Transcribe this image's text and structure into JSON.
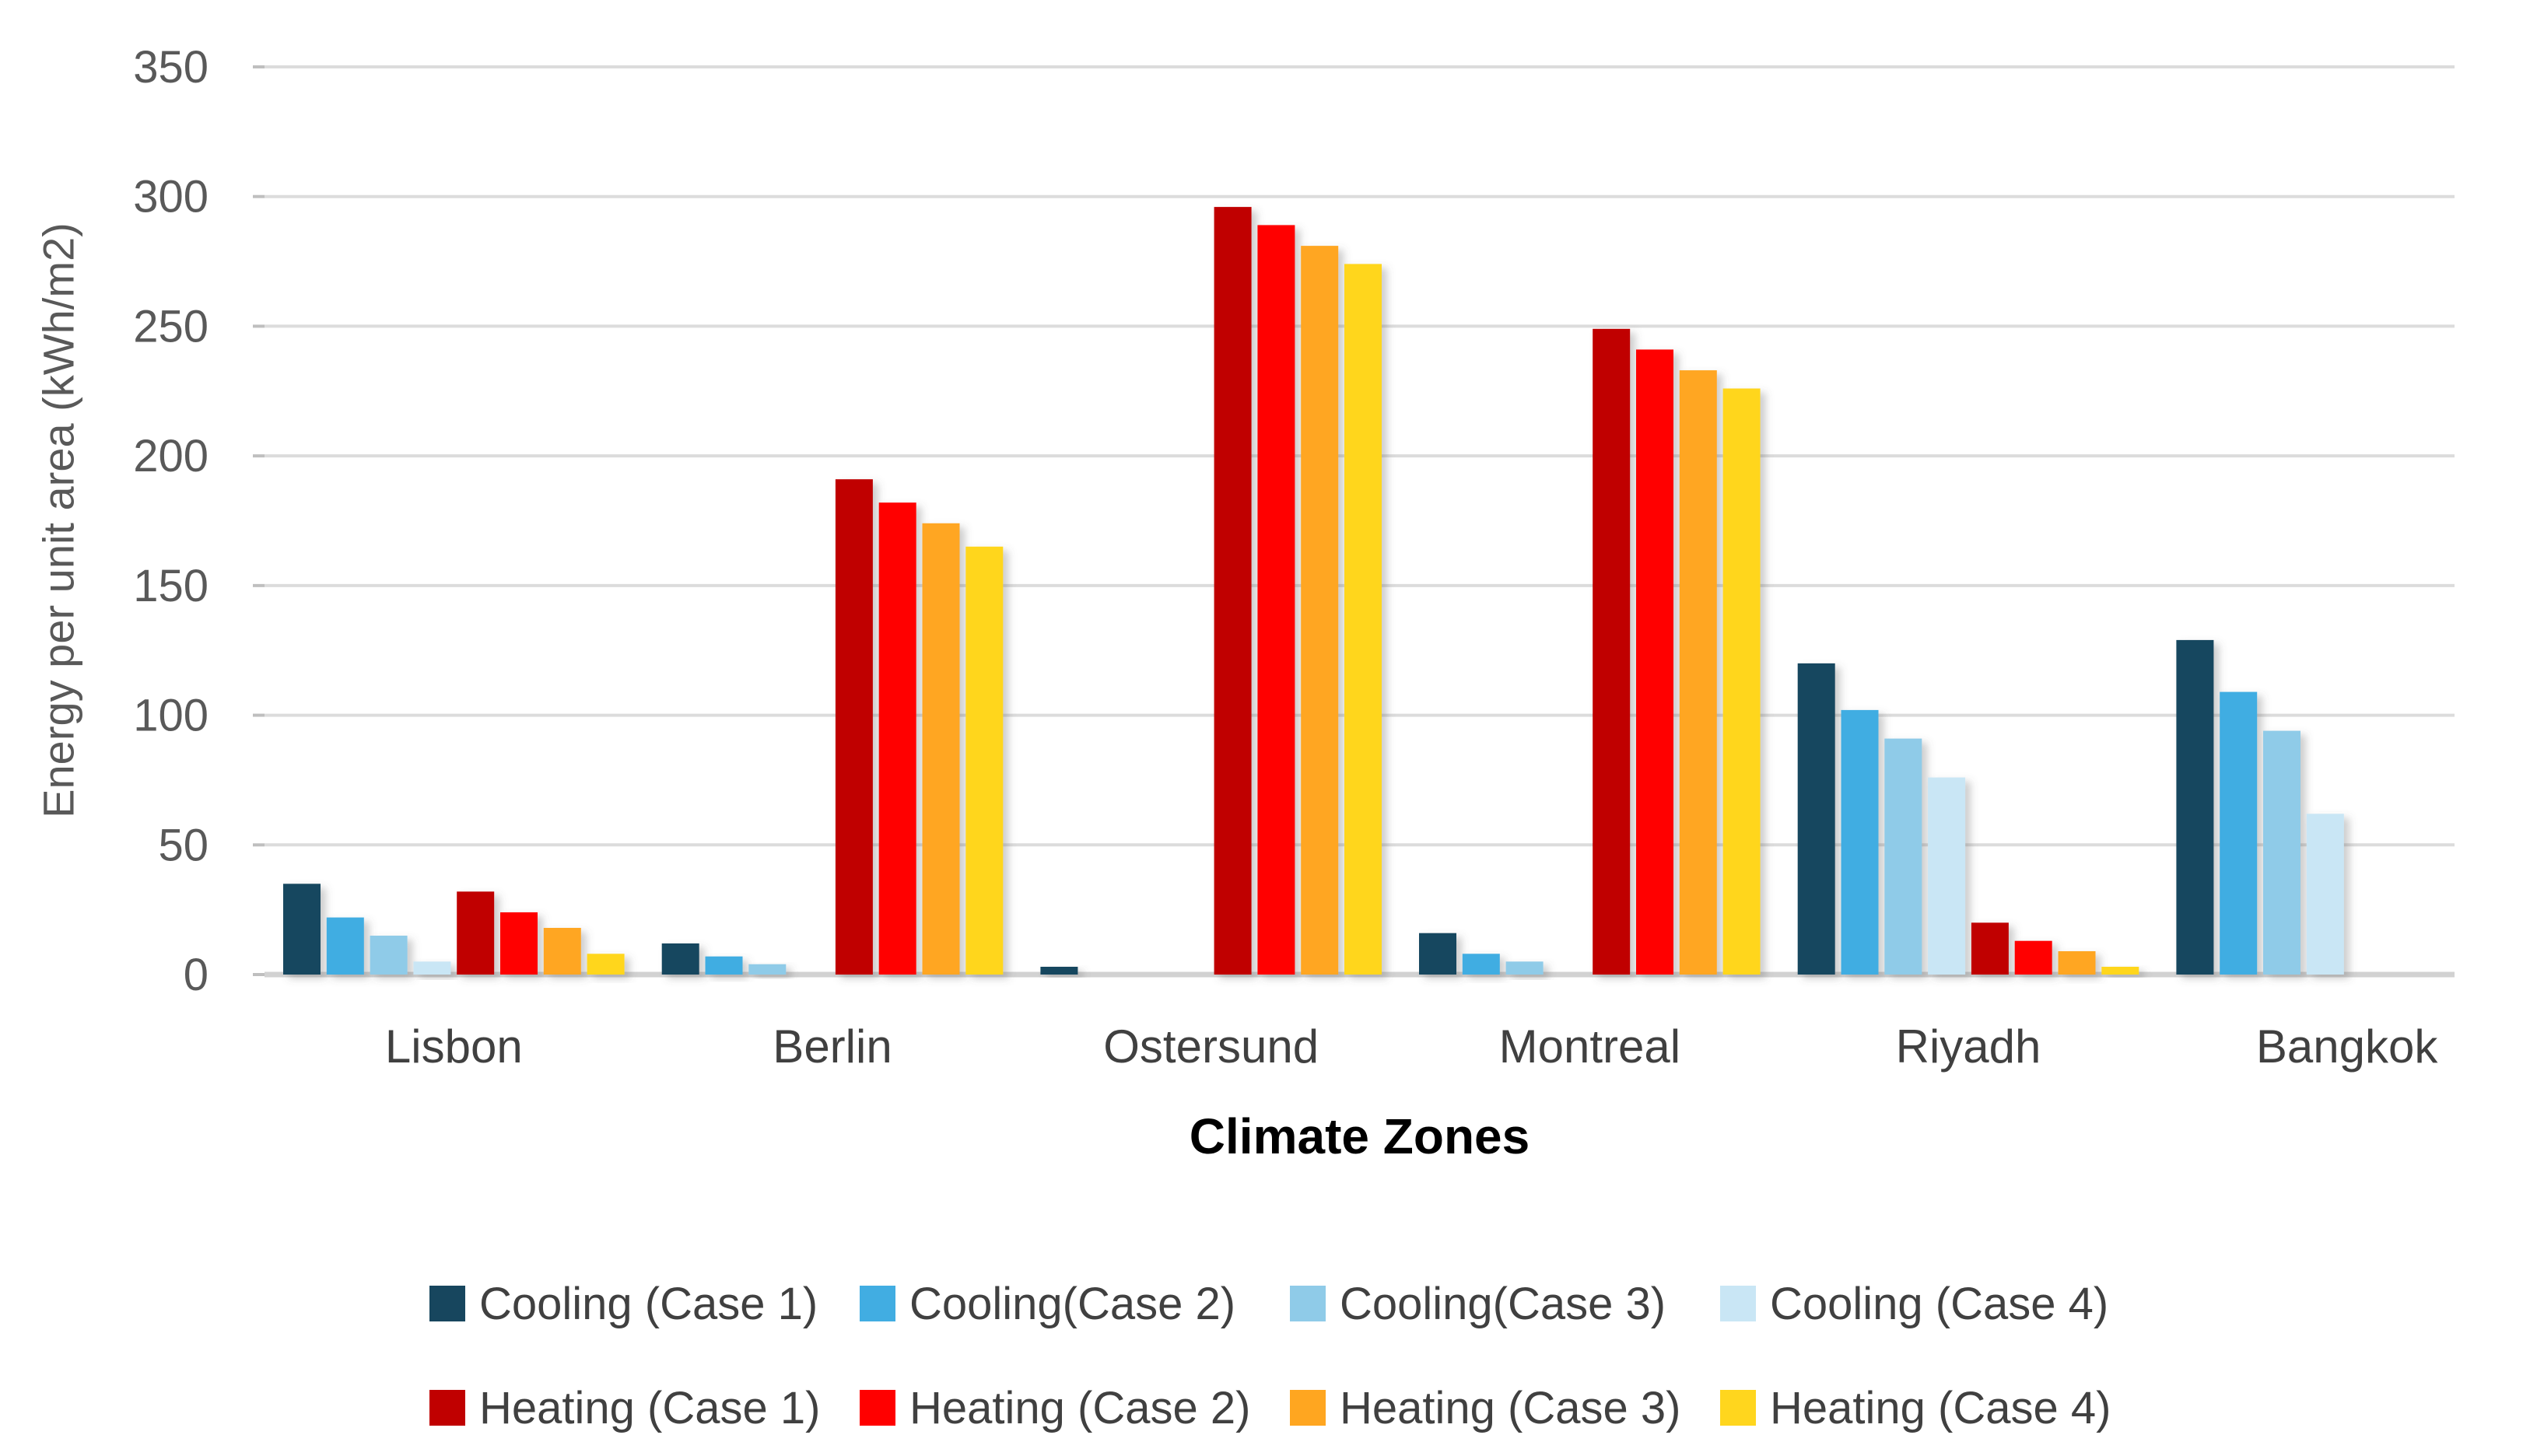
{
  "page": {
    "background": "#ffffff"
  },
  "chart_data": {
    "type": "bar",
    "title": "",
    "xlabel": "Climate Zones",
    "ylabel": "Energy per unit area (kWh/m2)",
    "ylim": [
      0,
      350
    ],
    "yticks": [
      0,
      50,
      100,
      150,
      200,
      250,
      300,
      350
    ],
    "grid": true,
    "legend_position": "bottom",
    "categories": [
      "Lisbon",
      "Berlin",
      "Ostersund",
      "Montreal",
      "Riyadh",
      "Bangkok"
    ],
    "series": [
      {
        "name": "Cooling (Case 1)",
        "color": "#17465E",
        "values": [
          35,
          12,
          3,
          16,
          120,
          129
        ]
      },
      {
        "name": "Cooling(Case 2)",
        "color": "#41ADE2",
        "values": [
          22,
          7,
          0,
          8,
          102,
          109
        ]
      },
      {
        "name": "Cooling(Case 3)",
        "color": "#8FCBE8",
        "values": [
          15,
          4,
          0,
          5,
          91,
          94
        ]
      },
      {
        "name": "Cooling (Case 4)",
        "color": "#C9E6F5",
        "values": [
          5,
          0,
          0,
          0,
          76,
          62
        ]
      },
      {
        "name": "Heating (Case 1)",
        "color": "#C00000",
        "values": [
          32,
          191,
          296,
          249,
          20,
          0
        ]
      },
      {
        "name": "Heating (Case 2)",
        "color": "#FF0000",
        "values": [
          24,
          182,
          289,
          241,
          13,
          0
        ]
      },
      {
        "name": "Heating (Case 3)",
        "color": "#FFA620",
        "values": [
          18,
          174,
          281,
          233,
          9,
          0
        ]
      },
      {
        "name": "Heating (Case 4)",
        "color": "#FFD61E",
        "values": [
          8,
          165,
          274,
          226,
          3,
          0
        ]
      }
    ],
    "legend_rows": [
      [
        "Cooling (Case 1)",
        "Cooling(Case 2)",
        "Cooling(Case 3)",
        "Cooling (Case 4)"
      ],
      [
        "Heating (Case 1)",
        "Heating (Case 2)",
        "Heating (Case 3)",
        "Heating (Case 4)"
      ]
    ]
  },
  "styles": {
    "grid_color": "#DCDCDC",
    "axis_line_color": "#D2D2D2",
    "tick_mark_color": "#BFBFBF",
    "tick_label_color": "#595959",
    "category_label_color": "#404040",
    "legend_text_color": "#404040",
    "xlabel_color": "#000000",
    "ylabel_color": "#595959"
  }
}
